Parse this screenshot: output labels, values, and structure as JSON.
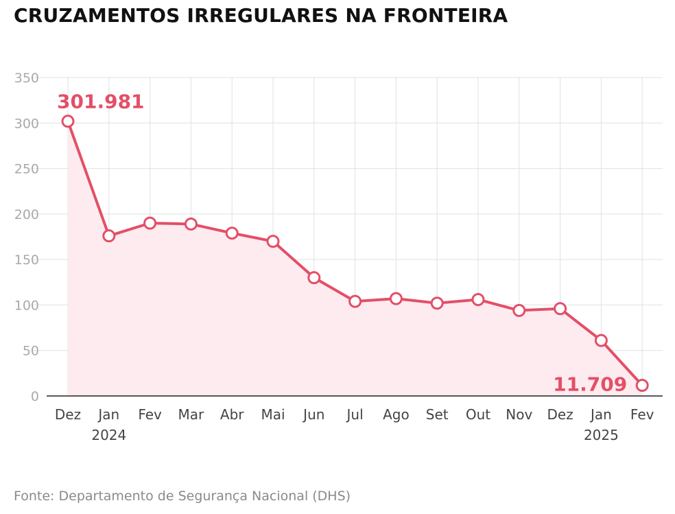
{
  "title": "CRUZAMENTOS IRREGULARES NA FRONTEIRA",
  "source": "Fonte: Departamento de Segurança Nacional (DHS)",
  "colors": {
    "line": "#e34f67",
    "area": "#fdebef",
    "grid": "#dde3e3",
    "marker_fill": "#ffffff"
  },
  "chart_data": {
    "type": "area",
    "categories": [
      "Dez",
      "Jan",
      "Fev",
      "Mar",
      "Abr",
      "Mai",
      "Jun",
      "Jul",
      "Ago",
      "Set",
      "Out",
      "Nov",
      "Dez",
      "Jan",
      "Fev"
    ],
    "year_labels": [
      {
        "index": 1,
        "label": "2024"
      },
      {
        "index": 13,
        "label": "2025"
      }
    ],
    "series": [
      {
        "values": [
          301.981,
          176,
          190,
          189,
          179,
          170,
          130,
          104,
          107,
          102,
          106,
          94,
          96,
          61,
          11.709
        ]
      }
    ],
    "data_labels": [
      {
        "index": 0,
        "text": "301.981"
      },
      {
        "index": 14,
        "text": "11.709"
      }
    ],
    "yticks": [
      0,
      50,
      100,
      150,
      200,
      250,
      300,
      350
    ],
    "ylim": [
      0,
      350
    ],
    "grid": true
  }
}
